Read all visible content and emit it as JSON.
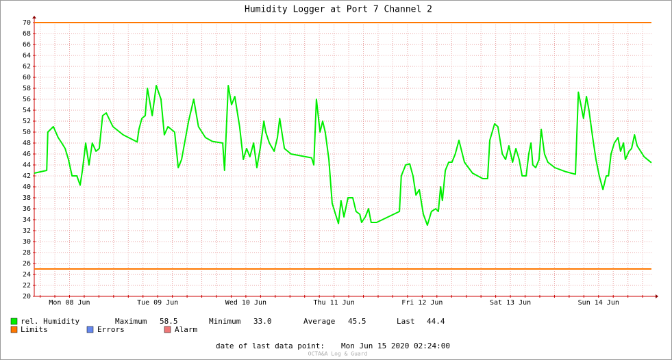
{
  "chart_data": {
    "type": "line",
    "title": "Humidity Logger at Port 7 Channel 2",
    "xlim": [
      2.4,
      170.4
    ],
    "xticks": [
      {
        "value": 12,
        "label": "Mon 08 Jun"
      },
      {
        "value": 36,
        "label": "Tue 09 Jun"
      },
      {
        "value": 60,
        "label": "Wed 10 Jun"
      },
      {
        "value": 84,
        "label": "Thu 11 Jun"
      },
      {
        "value": 108,
        "label": "Fri 12 Jun"
      },
      {
        "value": 132,
        "label": "Sat 13 Jun"
      },
      {
        "value": 156,
        "label": "Sun 14 Jun"
      }
    ],
    "x_minor_ticks": [
      4,
      8,
      12,
      16,
      20,
      24,
      28,
      32,
      36,
      40,
      44,
      48,
      52,
      56,
      60,
      64,
      68,
      72,
      76,
      80,
      84,
      88,
      92,
      96,
      100,
      104,
      108,
      112,
      116,
      120,
      124,
      128,
      132,
      136,
      140,
      144,
      148,
      152,
      156,
      160,
      164,
      168
    ],
    "ylim": [
      20,
      70
    ],
    "yticks": [
      20,
      22,
      24,
      26,
      28,
      30,
      32,
      34,
      36,
      38,
      40,
      42,
      44,
      46,
      48,
      50,
      52,
      54,
      56,
      58,
      60,
      62,
      64,
      66,
      68,
      70
    ],
    "grid": true,
    "series": [
      {
        "name": "rel. Humidity",
        "color": "#00ee00",
        "x": [
          2.4,
          5.8,
          6.1,
          7.6,
          8.9,
          9.9,
          10.8,
          11.7,
          12.7,
          14.0,
          14.9,
          15.5,
          16.4,
          17.3,
          18.2,
          19.2,
          20.1,
          21.0,
          22.0,
          23.8,
          26.6,
          30.4,
          30.9,
          31.7,
          32.6,
          33.2,
          34.5,
          35.6,
          36.9,
          37.8,
          38.8,
          40.6,
          41.6,
          42.5,
          44.4,
          45.8,
          47.1,
          49.0,
          50.9,
          53.7,
          54.2,
          55.2,
          56.1,
          57.0,
          58.3,
          59.3,
          60.2,
          61.1,
          62.1,
          63.0,
          63.9,
          64.9,
          65.4,
          66.4,
          67.7,
          68.6,
          69.2,
          70.5,
          72.3,
          77.9,
          78.5,
          79.2,
          80.2,
          80.9,
          81.6,
          82.6,
          83.5,
          84.4,
          85.2,
          85.9,
          86.7,
          87.8,
          89.1,
          90.0,
          91.0,
          91.5,
          92.5,
          93.4,
          94.1,
          95.6,
          101.8,
          102.3,
          103.5,
          104.6,
          105.5,
          106.3,
          107.2,
          108.3,
          109.4,
          110.5,
          111.7,
          112.4,
          113.0,
          113.5,
          114.3,
          115.2,
          116.1,
          117.0,
          118.0,
          119.5,
          121.7,
          124.5,
          125.8,
          126.4,
          127.7,
          128.6,
          129.8,
          130.7,
          131.6,
          132.6,
          133.5,
          134.4,
          135.2,
          136.3,
          137.0,
          137.6,
          138.1,
          138.9,
          139.8,
          140.4,
          141.3,
          142.2,
          144.1,
          146.9,
          149.7,
          150.5,
          151.2,
          151.9,
          152.7,
          153.4,
          154.4,
          155.3,
          156.2,
          157.2,
          158.1,
          158.7,
          159.4,
          160.3,
          161.3,
          162.0,
          162.8,
          163.3,
          164.3,
          165.0,
          165.8,
          166.5,
          168.4,
          170.4
        ],
        "values": [
          42.5,
          43,
          50,
          51,
          49,
          48,
          47,
          45,
          42,
          42,
          40.3,
          43,
          48,
          44,
          48,
          46.5,
          47,
          53,
          53.5,
          51,
          49.5,
          48.2,
          50.5,
          52.5,
          53,
          58,
          53,
          58.5,
          56,
          49.5,
          51,
          50,
          43.5,
          45,
          52,
          56,
          51,
          49,
          48.3,
          48,
          43,
          58.5,
          55,
          56.5,
          51,
          45,
          47,
          45.5,
          48,
          43.5,
          47,
          52,
          50,
          48,
          46.5,
          49,
          52.5,
          47,
          46,
          45.3,
          44,
          56,
          50,
          52,
          50,
          45,
          37,
          35,
          33.3,
          37.5,
          34.5,
          38,
          38,
          35.5,
          35,
          33.5,
          34.5,
          36,
          33.5,
          33.5,
          35.5,
          42,
          44,
          44.2,
          42,
          38.5,
          39.5,
          35,
          33,
          35.5,
          36,
          35.5,
          40,
          37.5,
          43,
          44.5,
          44.5,
          46,
          48.5,
          44.5,
          42.5,
          41.5,
          41.5,
          48.5,
          51.5,
          51,
          46,
          45,
          47.5,
          44.5,
          47,
          45,
          42,
          42,
          46,
          48,
          44,
          43.5,
          45,
          50.5,
          46,
          44.5,
          43.5,
          42.8,
          42.3,
          57.3,
          55,
          52.5,
          56.5,
          54,
          49,
          45,
          42,
          39.5,
          42,
          42,
          46,
          48,
          49,
          46.5,
          48,
          45,
          46.5,
          47,
          49.5,
          47.5,
          45.5,
          44.4
        ]
      }
    ],
    "limits": {
      "name": "Limits",
      "color": "#ff7700",
      "values": [
        70,
        25
      ]
    },
    "legend": {
      "stats": [
        {
          "label": "Maximum",
          "value": "58.5"
        },
        {
          "label": "Minimum",
          "value": "33.0"
        },
        {
          "label": "Average",
          "value": "45.5"
        },
        {
          "label": "Last",
          "value": "44.4"
        }
      ],
      "others": [
        {
          "name": "Errors",
          "color": "#6688ee"
        },
        {
          "name": "Alarm",
          "color": "#ee7777"
        }
      ]
    },
    "footer": {
      "label": "date of last data point:",
      "value": "Mon Jun 15 2020 02:24:00"
    },
    "watermark": "OCTA&A Log & Guard"
  }
}
